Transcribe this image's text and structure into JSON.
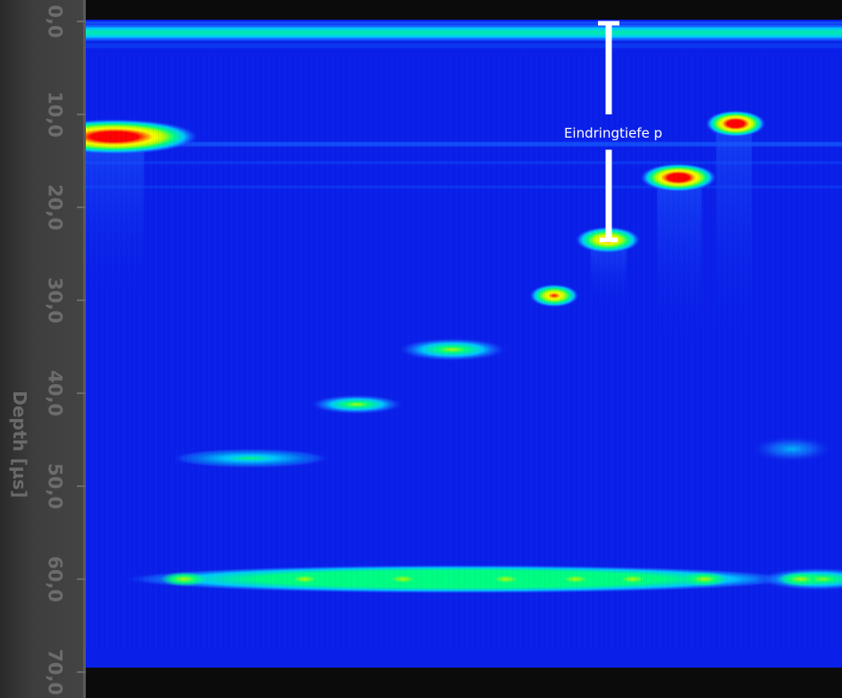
{
  "chart_data": {
    "type": "heatmap",
    "title": "",
    "ylabel": "Depth [µs]",
    "ylim": [
      0,
      70
    ],
    "yticks": [
      0,
      10,
      20,
      30,
      40,
      50,
      60,
      70
    ],
    "ytick_labels": [
      "0,0",
      "10,0",
      "20,0",
      "30,0",
      "40,0",
      "50,0",
      "60,0",
      "70,0"
    ],
    "colormap": [
      "#0a1fe8",
      "#1560ff",
      "#00c8ff",
      "#00ff80",
      "#b4ff00",
      "#ffff00",
      "#ff7a00",
      "#ff0000"
    ],
    "background_color": "#0a1fe8",
    "surface_echo_depth": 1.2,
    "backwall_echo_depth": 60.0,
    "reflectors": [
      {
        "depth": 12.4,
        "amplitude": 1.0
      },
      {
        "depth": 11.0,
        "amplitude": 0.95
      },
      {
        "depth": 16.8,
        "amplitude": 0.95
      },
      {
        "depth": 23.5,
        "amplitude": 0.85
      },
      {
        "depth": 29.5,
        "amplitude": 0.82
      },
      {
        "depth": 35.3,
        "amplitude": 0.55
      },
      {
        "depth": 41.2,
        "amplitude": 0.5
      },
      {
        "depth": 47.0,
        "amplitude": 0.4
      },
      {
        "depth": 46.0,
        "amplitude": 0.35
      }
    ],
    "annotation": {
      "label": "Eindringtiefe p",
      "from_depth": 0,
      "to_depth": 23.5
    }
  }
}
